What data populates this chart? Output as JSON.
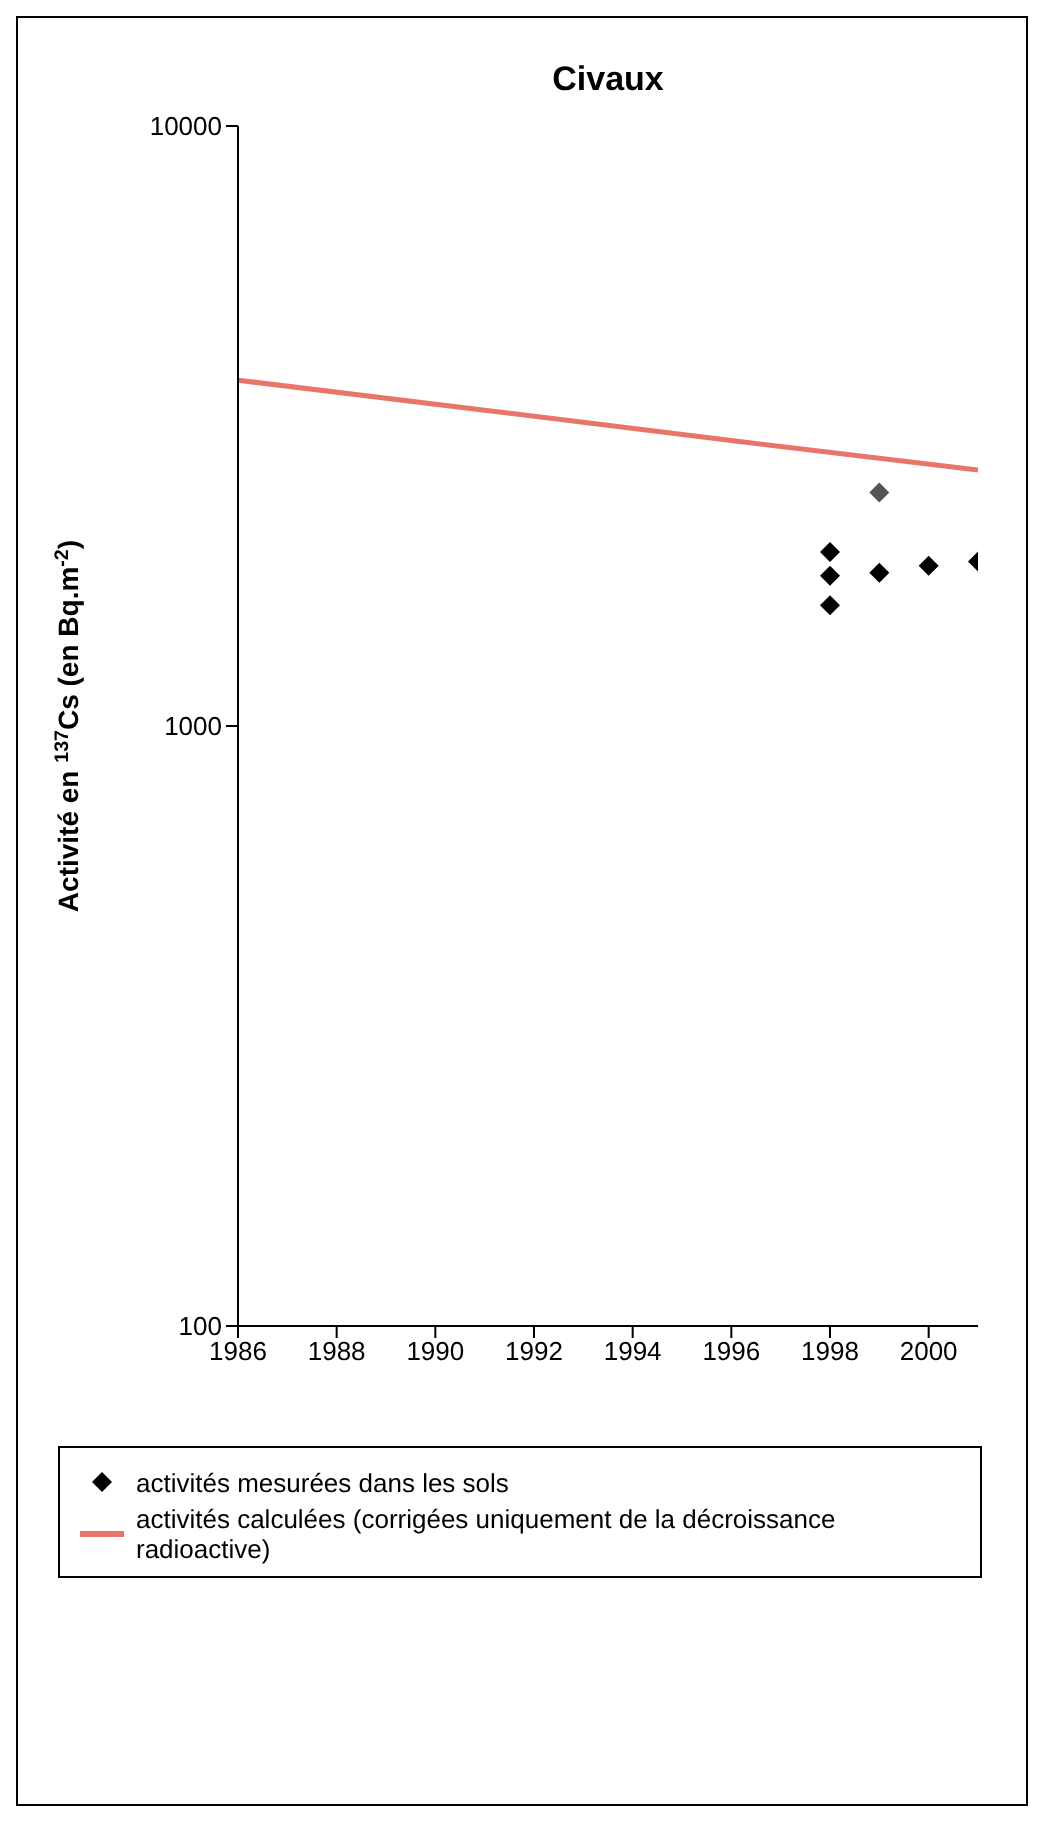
{
  "chart_data": {
    "type": "scatter",
    "title": "Civaux",
    "ylabel": "Activité en $^{137}$Cs (en Bq.m$^{-2}$)",
    "xlim": [
      1986,
      2001
    ],
    "xticks": [
      1986,
      1988,
      1990,
      1992,
      1994,
      1996,
      1998,
      2000
    ],
    "ylim": [
      100,
      10000
    ],
    "yticks": [
      100,
      1000,
      10000
    ],
    "log": true,
    "legend": "bottom left",
    "series": [
      {
        "name": "activités mesurées dans les sols",
        "marker": "diamond",
        "color": "#000000",
        "colors": [
          "#000000",
          "#000000",
          "#000000",
          "#555555",
          "#000000",
          "#000000",
          "#000000"
        ],
        "x": [
          1998,
          1998,
          1998,
          1999,
          1999,
          2000,
          2001
        ],
        "values": [
          1950,
          1780,
          1590,
          2450,
          1800,
          1850,
          1880
        ]
      },
      {
        "name": "activités calculées (corrigées uniquement de la décroissance radioactive)",
        "type": "line",
        "color": "#e8746a",
        "x": [
          1986,
          1991,
          1996,
          2001
        ],
        "values": [
          3770,
          3360,
          2990,
          2670
        ]
      }
    ]
  }
}
